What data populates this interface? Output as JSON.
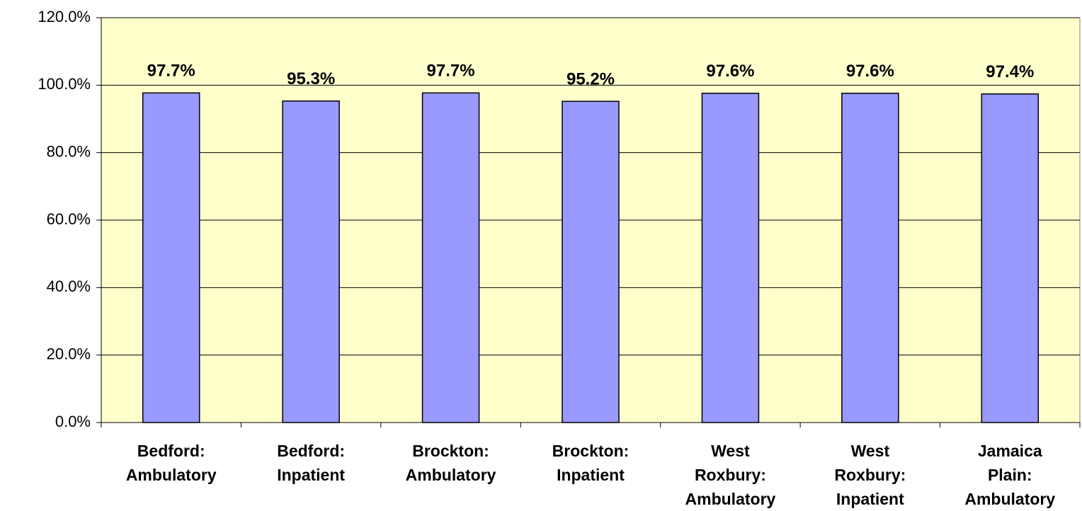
{
  "chart_data": {
    "type": "bar",
    "categories": [
      "Bedford:\nAmbulatory",
      "Bedford:\nInpatient",
      "Brockton:\nAmbulatory",
      "Brockton:\nInpatient",
      "West\nRoxbury:\nAmbulatory",
      "West\nRoxbury:\nInpatient",
      "Jamaica\nPlain:\nAmbulatory"
    ],
    "values": [
      97.7,
      95.3,
      97.7,
      95.2,
      97.6,
      97.6,
      97.4
    ],
    "value_labels": [
      "97.7%",
      "95.3%",
      "97.7%",
      "95.2%",
      "97.6%",
      "97.6%",
      "97.4%"
    ],
    "color": "#9999ff",
    "plot_background": "#ffffcc",
    "ylim": [
      0,
      120
    ],
    "yticks": [
      {
        "value": 0,
        "label": "0.0%"
      },
      {
        "value": 20,
        "label": "20.0%"
      },
      {
        "value": 40,
        "label": "40.0%"
      },
      {
        "value": 60,
        "label": "60.0%"
      },
      {
        "value": 80,
        "label": "80.0%"
      },
      {
        "value": 100,
        "label": "100.0%"
      },
      {
        "value": 120,
        "label": "120.0%"
      }
    ],
    "grid": true
  }
}
